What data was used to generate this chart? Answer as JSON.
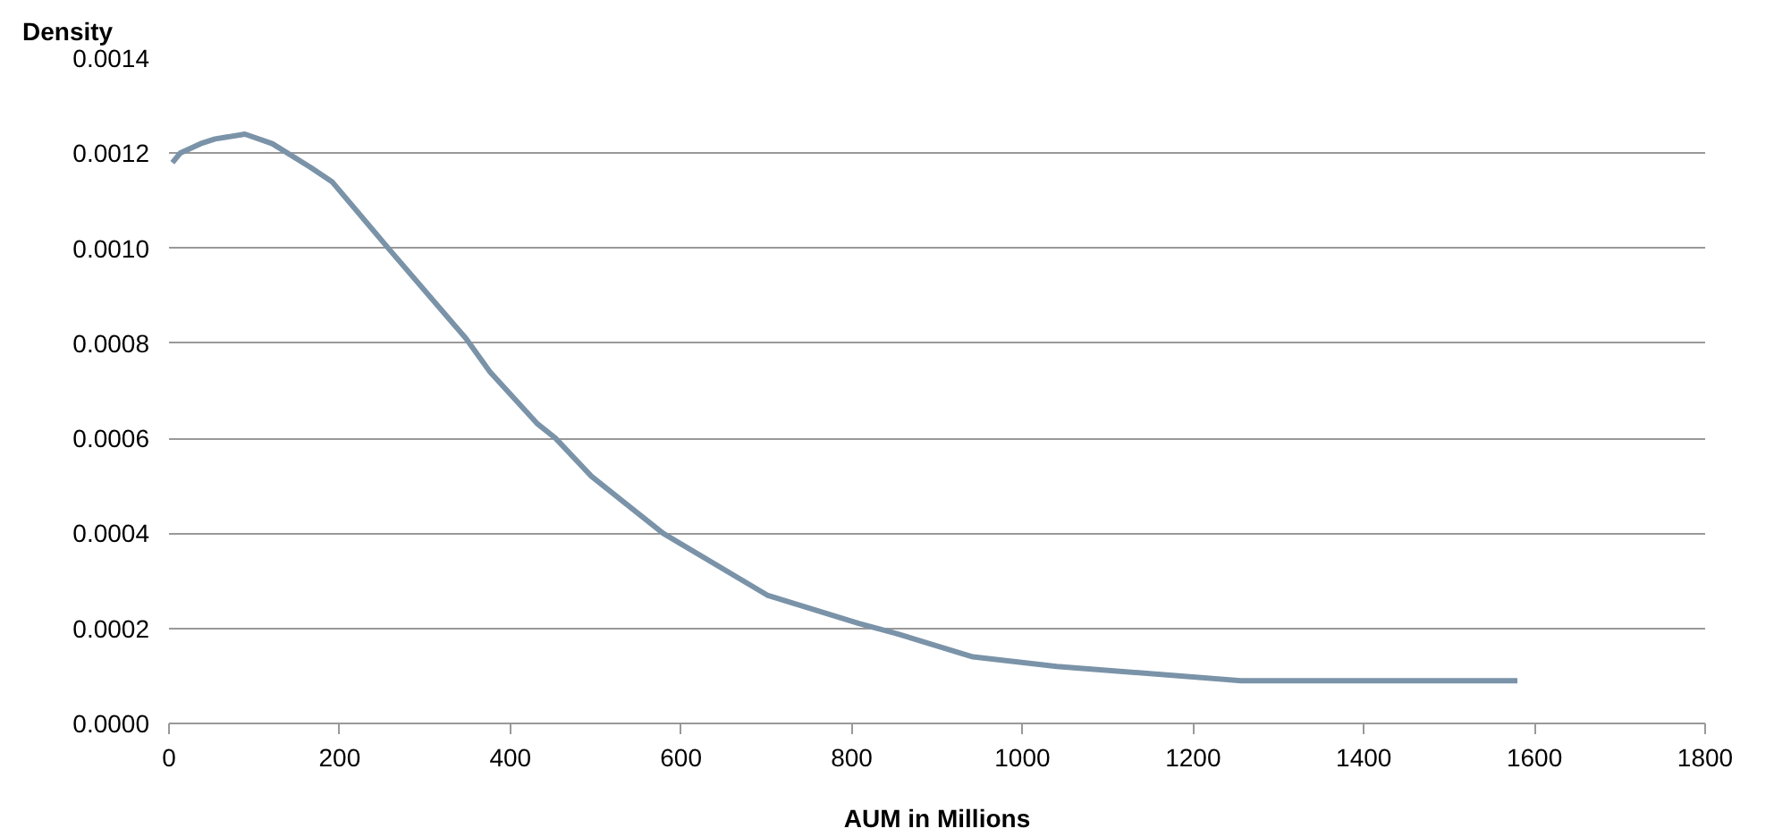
{
  "chart_data": {
    "type": "line",
    "ylabel": "Density",
    "xlabel": "AUM in Millions",
    "x": [
      4,
      13,
      37,
      54,
      89,
      121,
      166,
      191,
      257,
      348,
      376,
      432,
      453,
      495,
      544,
      579,
      701,
      809,
      851,
      942,
      1040,
      1256,
      1580
    ],
    "series": [
      {
        "color": "#7a93a8",
        "values": [
          0.00118,
          0.0012,
          0.00122,
          0.00123,
          0.00124,
          0.00122,
          0.00117,
          0.00114,
          0.001,
          0.00081,
          0.00074,
          0.00063,
          0.0006,
          0.00052,
          0.00045,
          0.0004,
          0.00027,
          0.00021,
          0.00019,
          0.00014,
          0.00012,
          9e-05,
          9e-05
        ]
      }
    ],
    "xlim": [
      0,
      1800
    ],
    "xticks": [
      0,
      200,
      400,
      600,
      800,
      1000,
      1200,
      1400,
      1600,
      1800
    ],
    "ylim": [
      0,
      0.0014
    ],
    "yticks": [
      {
        "value": 0,
        "label": "0.0000"
      },
      {
        "value": 0.0002,
        "label": "0.0002"
      },
      {
        "value": 0.0004,
        "label": "0.0004"
      },
      {
        "value": 0.0006,
        "label": "0.0006"
      },
      {
        "value": 0.0008,
        "label": "0.0008"
      },
      {
        "value": 0.001,
        "label": "0.0010"
      },
      {
        "value": 0.0012,
        "label": "0.0012"
      },
      {
        "value": 0.0014,
        "label": "0.0014"
      }
    ],
    "grid": "y",
    "marker": "none",
    "line_style": "solid"
  }
}
